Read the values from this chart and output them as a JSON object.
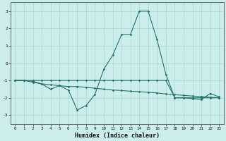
{
  "xlabel": "Humidex (Indice chaleur)",
  "background_color": "#cbeeed",
  "grid_color": "#a8d8d5",
  "line_color": "#2a7068",
  "xlim": [
    -0.5,
    23.5
  ],
  "ylim": [
    -3.5,
    3.5
  ],
  "yticks": [
    -3,
    -2,
    -1,
    0,
    1,
    2,
    3
  ],
  "xticks": [
    0,
    1,
    2,
    3,
    4,
    5,
    6,
    7,
    8,
    9,
    10,
    11,
    12,
    13,
    14,
    15,
    16,
    17,
    18,
    19,
    20,
    21,
    22,
    23
  ],
  "line1_x": [
    0,
    1,
    2,
    3,
    4,
    5,
    6,
    7,
    8,
    9,
    10,
    11,
    12,
    13,
    14,
    15,
    16,
    17,
    18,
    19,
    20,
    21,
    22,
    23
  ],
  "line1_y": [
    -1.0,
    -1.0,
    -1.1,
    -1.2,
    -1.5,
    -1.3,
    -1.55,
    -2.7,
    -2.45,
    -1.8,
    -0.35,
    0.45,
    1.65,
    1.65,
    3.0,
    3.0,
    1.35,
    -0.65,
    -2.0,
    -2.0,
    -2.05,
    -2.1,
    -1.75,
    -1.95
  ],
  "line2_x": [
    0,
    1,
    2,
    3,
    4,
    5,
    6,
    7,
    8,
    9,
    10,
    11,
    12,
    13,
    14,
    15,
    16,
    17,
    18,
    19,
    20,
    21,
    22,
    23
  ],
  "line2_y": [
    -1.0,
    -1.0,
    -1.05,
    -1.2,
    -1.25,
    -1.3,
    -1.35,
    -1.35,
    -1.4,
    -1.45,
    -1.5,
    -1.55,
    -1.58,
    -1.62,
    -1.65,
    -1.68,
    -1.72,
    -1.78,
    -1.82,
    -1.86,
    -1.9,
    -1.93,
    -1.97,
    -2.0
  ],
  "line3_x": [
    0,
    1,
    2,
    3,
    4,
    5,
    6,
    7,
    8,
    9,
    10,
    11,
    12,
    13,
    14,
    15,
    16,
    17,
    18,
    19,
    20,
    21,
    22,
    23
  ],
  "line3_y": [
    -1.0,
    -1.0,
    -1.0,
    -1.0,
    -1.0,
    -1.0,
    -1.0,
    -1.0,
    -1.0,
    -1.0,
    -1.0,
    -1.0,
    -1.0,
    -1.0,
    -1.0,
    -1.0,
    -1.0,
    -1.0,
    -2.0,
    -2.0,
    -2.0,
    -2.0,
    -2.0,
    -2.0
  ]
}
